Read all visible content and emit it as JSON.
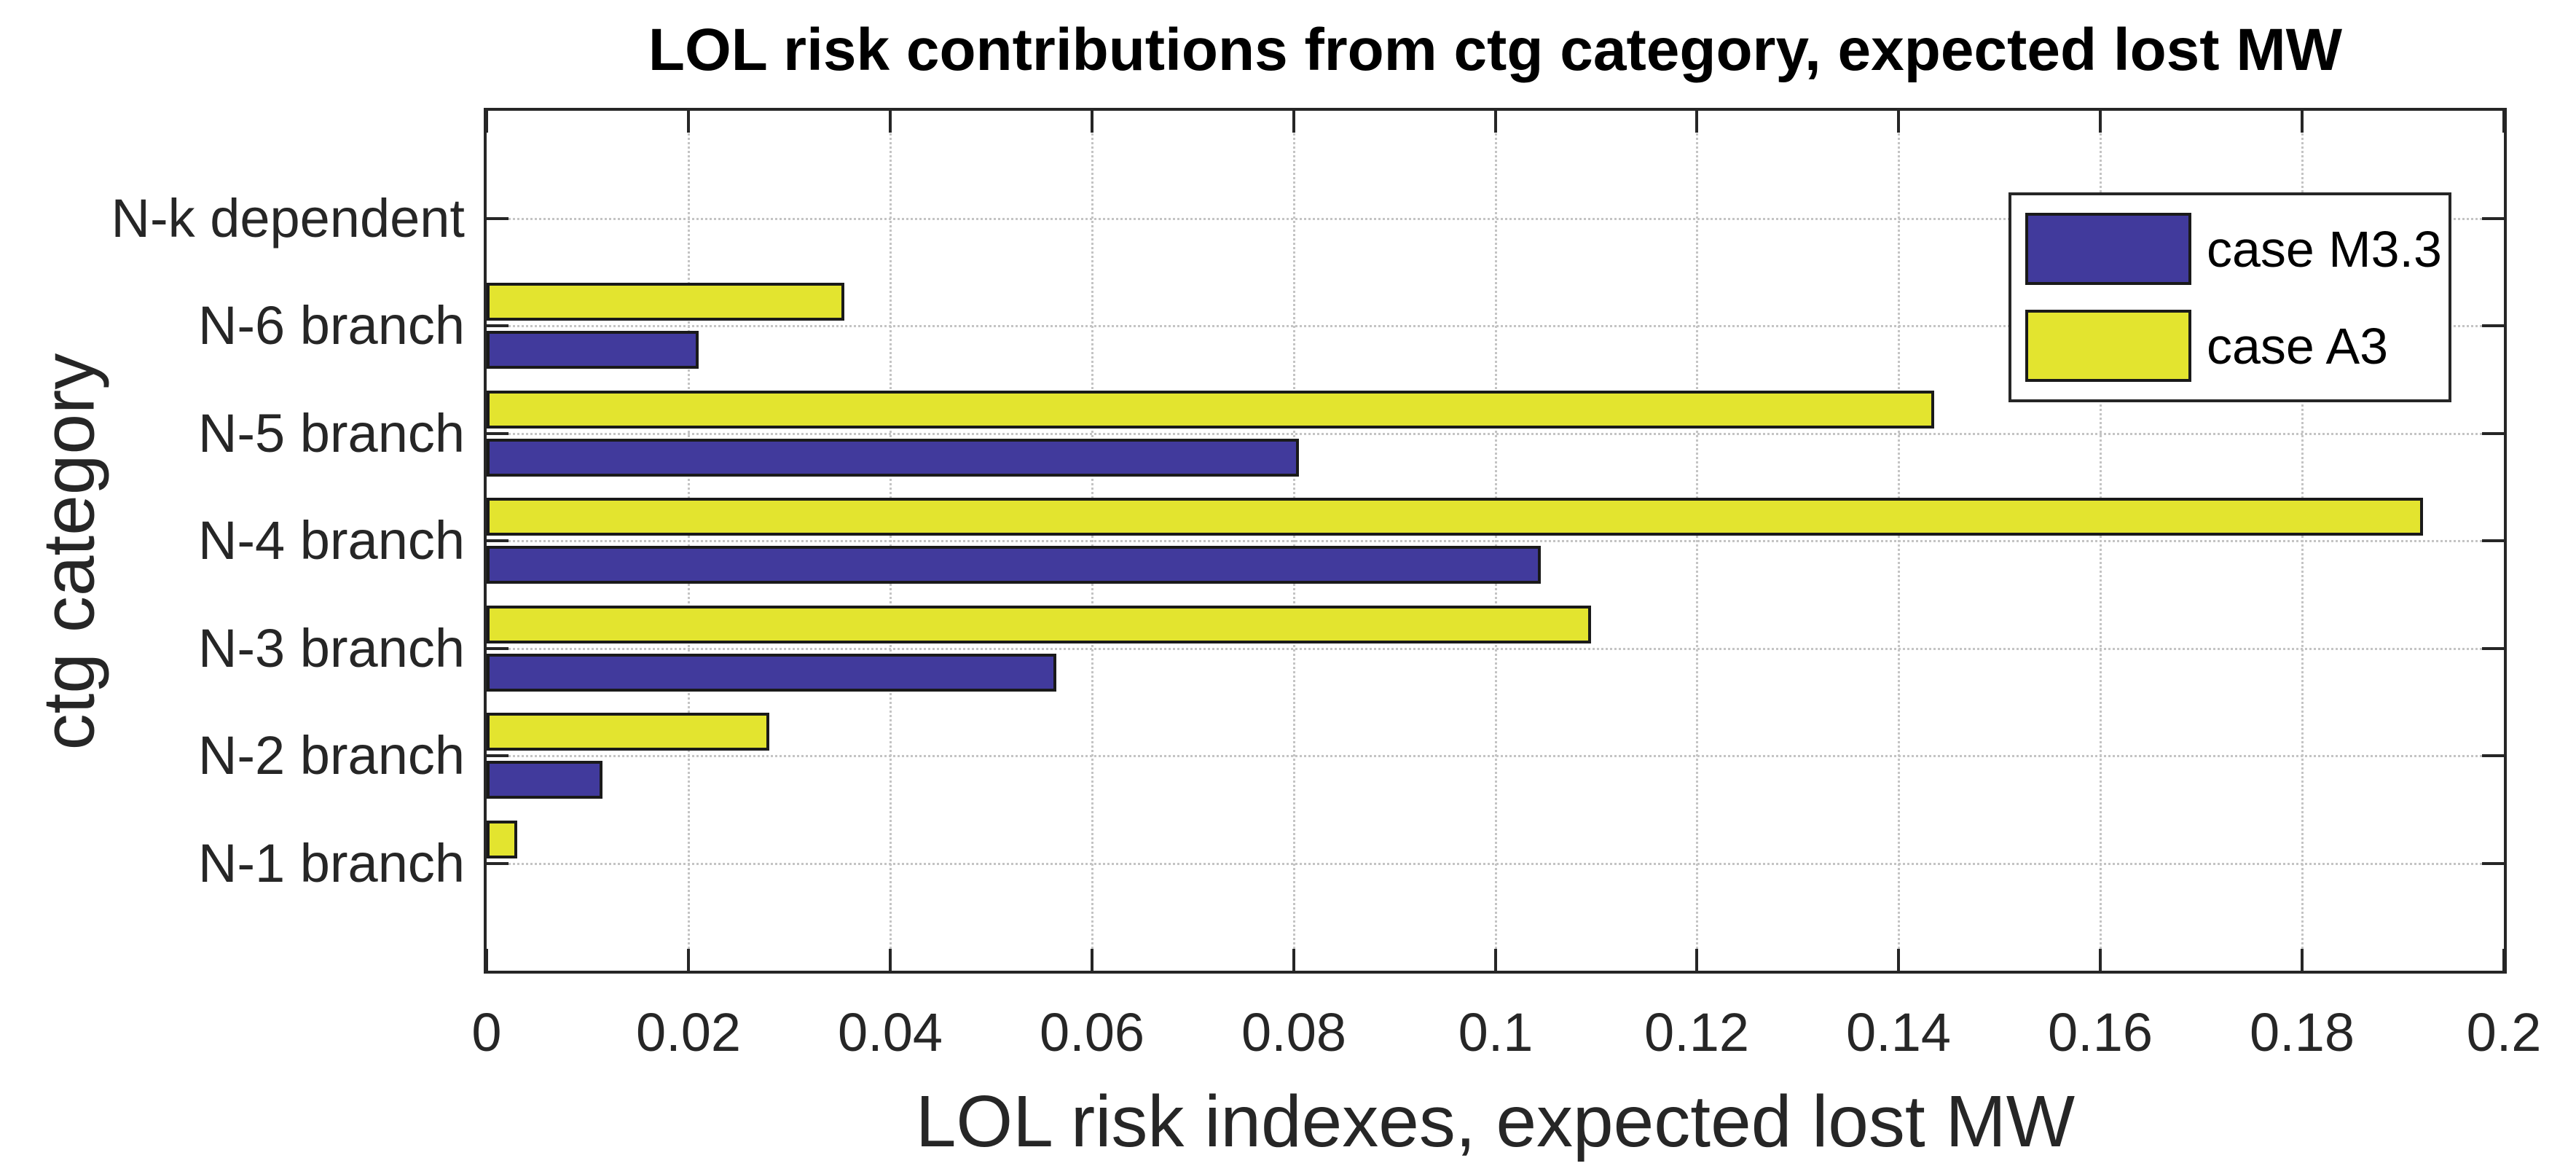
{
  "chart_data": {
    "type": "bar",
    "orientation": "horizontal",
    "title": "LOL risk contributions from ctg category, expected lost MW",
    "xlabel": "LOL risk indexes, expected lost MW",
    "ylabel": "ctg category",
    "categories": [
      "N-k dependent",
      "N-6 branch",
      "N-5 branch",
      "N-4 branch",
      "N-3 branch",
      "N-2 branch",
      "N-1 branch"
    ],
    "categories_order": "top-to-bottom",
    "series": [
      {
        "name": "case M3.3",
        "color": "#413a9c",
        "values_by_category": [
          0,
          0.021,
          0.0805,
          0.1045,
          0.0565,
          0.0115,
          0
        ]
      },
      {
        "name": "case A3",
        "color": "#e3e42f",
        "values_by_category": [
          0,
          0.0355,
          0.1435,
          0.192,
          0.1095,
          0.028,
          0.003
        ]
      }
    ],
    "group_layout": "within each category: case A3 bar on top, case M3.3 bar below",
    "xlim": [
      0,
      0.2
    ],
    "xticks": [
      0,
      0.02,
      0.04,
      0.06,
      0.08,
      0.1,
      0.12,
      0.14,
      0.16,
      0.18,
      0.2
    ],
    "xtick_labels": [
      "0",
      "0.02",
      "0.04",
      "0.06",
      "0.08",
      "0.1",
      "0.12",
      "0.14",
      "0.16",
      "0.18",
      "0.2"
    ],
    "grid": true,
    "grid_style": "dotted",
    "tick_direction": "in",
    "box": true,
    "legend": {
      "position": "top-right-inside",
      "entries": [
        "case M3.3",
        "case A3"
      ]
    },
    "colors": {
      "axis": "#262626",
      "grid": "#c4c4c4",
      "bar_edge": "#1a1a1a",
      "title": "#000000",
      "background": "#ffffff"
    }
  }
}
